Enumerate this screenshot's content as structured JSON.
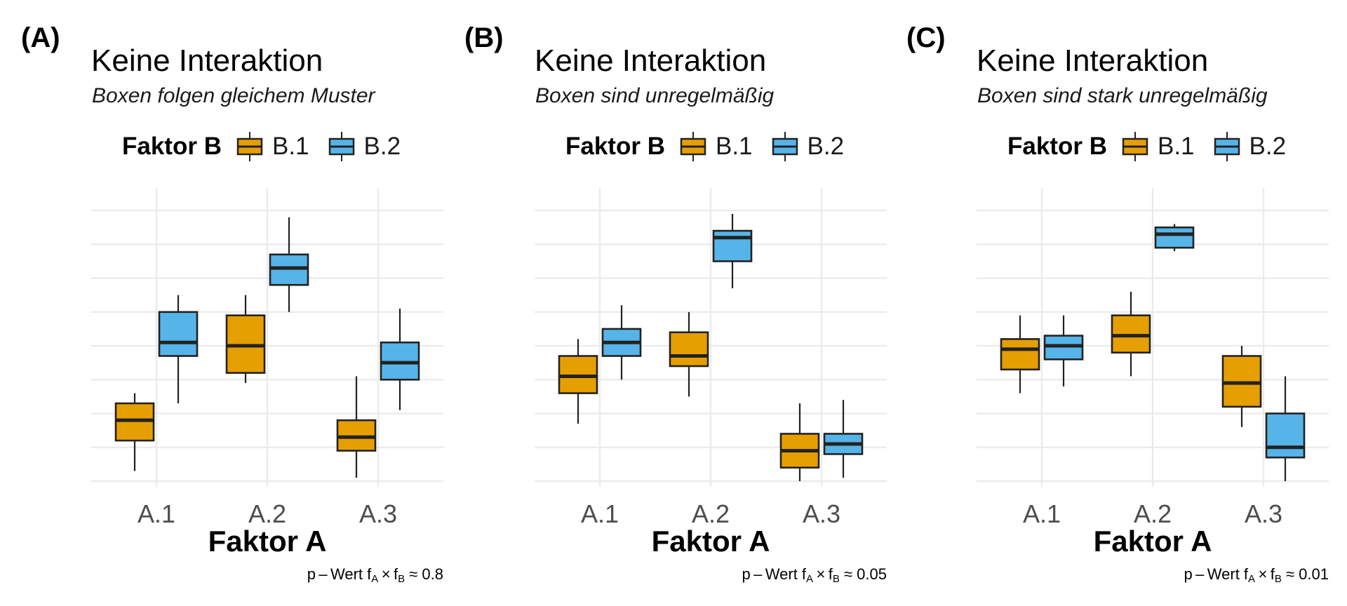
{
  "colors": {
    "B.1": "#E69F00",
    "B.2": "#56B4E9",
    "border": "#222222",
    "grid": "#ebebeb"
  },
  "chart_data": [
    {
      "type": "boxplot",
      "tag": "(A)",
      "title": "Keine Interaktion",
      "subtitle": "Boxen folgen gleichem Muster",
      "legend_title": "Faktor B",
      "legend_position": "top",
      "groups": [
        "B.1",
        "B.2"
      ],
      "categories": [
        "A.1",
        "A.2",
        "A.3"
      ],
      "xlabel": "Faktor A",
      "ylabel": "",
      "ylim": [
        0,
        8.5
      ],
      "y_ticks_shown": false,
      "grid": true,
      "caption_label": "p – Wert",
      "caption_a": "A",
      "caption_b": "B",
      "caption_value": "≈ 0.8",
      "series": [
        {
          "name": "B.1",
          "boxes": [
            {
              "category": "A.1",
              "min": 0.3,
              "q1": 1.2,
              "median": 1.8,
              "q3": 2.3,
              "max": 2.6
            },
            {
              "category": "A.2",
              "min": 2.9,
              "q1": 3.2,
              "median": 4.0,
              "q3": 4.9,
              "max": 5.5
            },
            {
              "category": "A.3",
              "min": 0.1,
              "q1": 0.9,
              "median": 1.3,
              "q3": 1.8,
              "max": 3.1
            }
          ]
        },
        {
          "name": "B.2",
          "boxes": [
            {
              "category": "A.1",
              "min": 2.3,
              "q1": 3.7,
              "median": 4.1,
              "q3": 5.0,
              "max": 5.5
            },
            {
              "category": "A.2",
              "min": 5.0,
              "q1": 5.8,
              "median": 6.3,
              "q3": 6.7,
              "max": 7.8
            },
            {
              "category": "A.3",
              "min": 2.1,
              "q1": 3.0,
              "median": 3.5,
              "q3": 4.1,
              "max": 5.1
            }
          ]
        }
      ]
    },
    {
      "type": "boxplot",
      "tag": "(B)",
      "title": "Keine Interaktion",
      "subtitle": "Boxen sind unregelmäßig",
      "legend_title": "Faktor B",
      "legend_position": "top",
      "groups": [
        "B.1",
        "B.2"
      ],
      "categories": [
        "A.1",
        "A.2",
        "A.3"
      ],
      "xlabel": "Faktor A",
      "ylabel": "",
      "ylim": [
        0,
        8.5
      ],
      "y_ticks_shown": false,
      "grid": true,
      "caption_label": "p – Wert",
      "caption_a": "A",
      "caption_b": "B",
      "caption_value": "≈ 0.05",
      "series": [
        {
          "name": "B.1",
          "boxes": [
            {
              "category": "A.1",
              "min": 1.7,
              "q1": 2.6,
              "median": 3.1,
              "q3": 3.7,
              "max": 4.2
            },
            {
              "category": "A.2",
              "min": 2.5,
              "q1": 3.4,
              "median": 3.7,
              "q3": 4.4,
              "max": 5.0
            },
            {
              "category": "A.3",
              "min": 0.0,
              "q1": 0.4,
              "median": 0.9,
              "q3": 1.4,
              "max": 2.3
            }
          ]
        },
        {
          "name": "B.2",
          "boxes": [
            {
              "category": "A.1",
              "min": 3.0,
              "q1": 3.7,
              "median": 4.1,
              "q3": 4.5,
              "max": 5.2
            },
            {
              "category": "A.2",
              "min": 5.7,
              "q1": 6.5,
              "median": 7.2,
              "q3": 7.4,
              "max": 7.9
            },
            {
              "category": "A.3",
              "min": 0.1,
              "q1": 0.8,
              "median": 1.1,
              "q3": 1.4,
              "max": 2.4
            }
          ]
        }
      ]
    },
    {
      "type": "boxplot",
      "tag": "(C)",
      "title": "Keine Interaktion",
      "subtitle": "Boxen sind stark unregelmäßig",
      "legend_title": "Faktor B",
      "legend_position": "top",
      "groups": [
        "B.1",
        "B.2"
      ],
      "categories": [
        "A.1",
        "A.2",
        "A.3"
      ],
      "xlabel": "Faktor A",
      "ylabel": "",
      "ylim": [
        0,
        8.5
      ],
      "y_ticks_shown": false,
      "grid": true,
      "caption_label": "p – Wert",
      "caption_a": "A",
      "caption_b": "B",
      "caption_value": "≈ 0.01",
      "series": [
        {
          "name": "B.1",
          "boxes": [
            {
              "category": "A.1",
              "min": 2.6,
              "q1": 3.3,
              "median": 3.9,
              "q3": 4.2,
              "max": 4.9
            },
            {
              "category": "A.2",
              "min": 3.1,
              "q1": 3.8,
              "median": 4.3,
              "q3": 4.9,
              "max": 5.6
            },
            {
              "category": "A.3",
              "min": 1.6,
              "q1": 2.2,
              "median": 2.9,
              "q3": 3.7,
              "max": 4.0
            }
          ]
        },
        {
          "name": "B.2",
          "boxes": [
            {
              "category": "A.1",
              "min": 2.8,
              "q1": 3.6,
              "median": 4.0,
              "q3": 4.3,
              "max": 4.9
            },
            {
              "category": "A.2",
              "min": 6.8,
              "q1": 6.9,
              "median": 7.3,
              "q3": 7.5,
              "max": 7.6
            },
            {
              "category": "A.3",
              "min": 0.0,
              "q1": 0.7,
              "median": 1.0,
              "q3": 2.0,
              "max": 3.1
            }
          ]
        }
      ]
    }
  ]
}
